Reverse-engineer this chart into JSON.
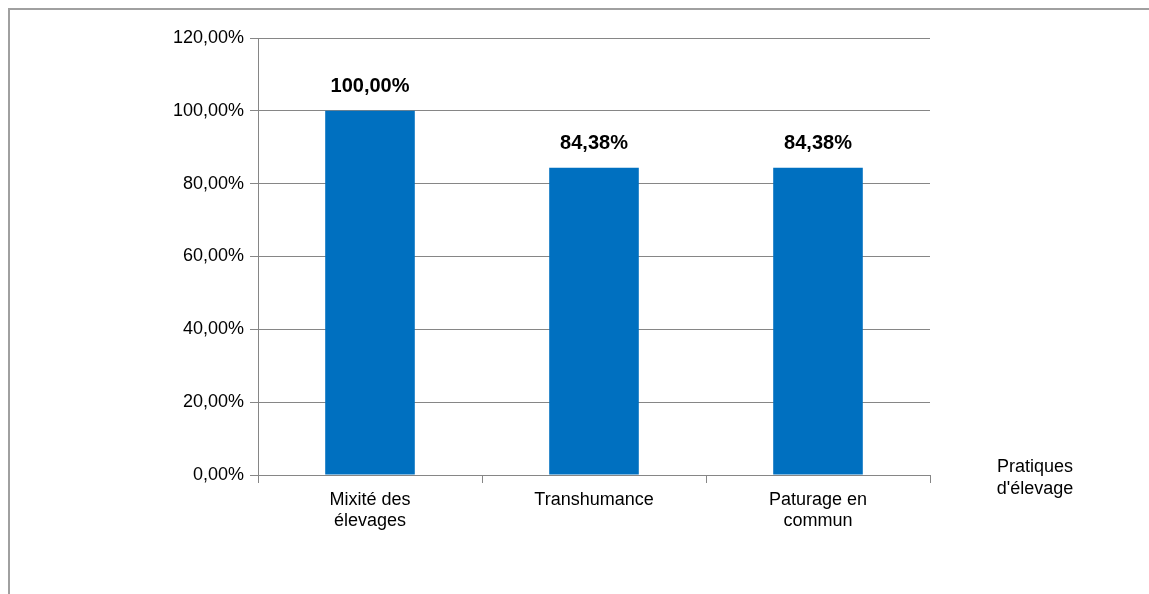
{
  "chart_data": {
    "type": "bar",
    "xlabel": "Pratiques d'élevage",
    "categories": [
      "Mixité des élevages",
      "Transhumance",
      "Paturage en commun"
    ],
    "values": [
      100,
      84.38,
      84.38
    ],
    "color": "#0070c0",
    "value_labels": [
      "100,00%",
      "84,38%",
      "84,38%"
    ],
    "ylim": [
      0,
      120
    ],
    "yticks": [
      {
        "value": 0,
        "label": "0,00%"
      },
      {
        "value": 20,
        "label": "20,00%"
      },
      {
        "value": 40,
        "label": "40,00%"
      },
      {
        "value": 60,
        "label": "60,00%"
      },
      {
        "value": 80,
        "label": "80,00%"
      },
      {
        "value": 100,
        "label": "100,00%"
      },
      {
        "value": 120,
        "label": "120,00%"
      }
    ],
    "grid": "y",
    "legend": false
  }
}
